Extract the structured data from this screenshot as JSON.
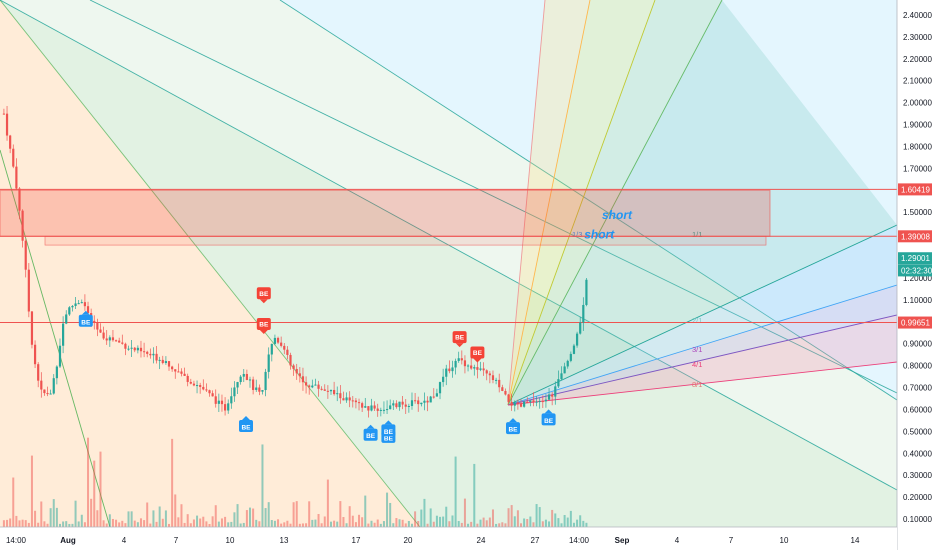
{
  "chart_data": {
    "type": "candlestick",
    "x_ticks": [
      "14:00",
      "Aug",
      "4",
      "7",
      "10",
      "13",
      "17",
      "20",
      "24",
      "27",
      "14:00",
      "Sep",
      "4",
      "7",
      "10",
      "14"
    ],
    "y_ticks": [
      "2.40000",
      "2.30000",
      "2.20000",
      "2.10000",
      "2.00000",
      "1.90000",
      "1.80000",
      "1.70000",
      "1.60000",
      "1.50000",
      "1.40000",
      "1.30000",
      "1.20000",
      "1.10000",
      "1.00000",
      "0.90000",
      "0.80000",
      "0.70000",
      "0.60000",
      "0.50000",
      "0.40000",
      "0.30000",
      "0.20000",
      "0.10000"
    ],
    "ylim": [
      0.05,
      2.43
    ],
    "price_labels": [
      {
        "text": "1.60419",
        "value": 1.60419,
        "color": "#ef5350"
      },
      {
        "text": "1.39008",
        "value": 1.39008,
        "color": "#ef5350"
      },
      {
        "text": "1.29001",
        "value": 1.29001,
        "color": "#26a69a"
      },
      {
        "text": "02:32:30",
        "value": 1.2345,
        "color": "#26a69a"
      },
      {
        "text": "0.99651",
        "value": 0.99651,
        "color": "#ef5350"
      }
    ],
    "horizontal_levels": [
      1.60419,
      1.39008,
      0.99651
    ],
    "zones": [
      {
        "from": 1.39,
        "to": 1.6,
        "color": "#f44336"
      },
      {
        "from": 1.39,
        "to": 1.35,
        "color": "#f44336"
      }
    ],
    "annotations": [
      {
        "text": "short",
        "date": "Aug 31",
        "value": 1.47
      },
      {
        "text": "short",
        "date": "Aug 30",
        "value": 1.38
      }
    ],
    "fan_labels": [
      "1/3",
      "1/2",
      "1/1",
      "2/1",
      "3/1",
      "4/1",
      "8/1"
    ],
    "signals": [
      {
        "text": "BE",
        "date": "Aug 2",
        "value": 1.0,
        "type": "buy"
      },
      {
        "text": "BE",
        "date": "Aug 12",
        "value": 1.13,
        "type": "sell"
      },
      {
        "text": "BE",
        "date": "Aug 12",
        "value": 0.99,
        "type": "sell"
      },
      {
        "text": "BE",
        "date": "Aug 11",
        "value": 0.52,
        "type": "buy"
      },
      {
        "text": "BE",
        "date": "Aug 18",
        "value": 0.48,
        "type": "buy"
      },
      {
        "text": "BE",
        "date": "Aug 19",
        "value": 0.47,
        "type": "buy"
      },
      {
        "text": "BE",
        "date": "Aug 19",
        "value": 0.5,
        "type": "buy"
      },
      {
        "text": "BE",
        "date": "Aug 23",
        "value": 0.93,
        "type": "sell"
      },
      {
        "text": "BE",
        "date": "Aug 24",
        "value": 0.86,
        "type": "sell"
      },
      {
        "text": "BE",
        "date": "Aug 26",
        "value": 0.51,
        "type": "buy"
      },
      {
        "text": "BE",
        "date": "Aug 28",
        "value": 0.55,
        "type": "buy"
      }
    ]
  }
}
